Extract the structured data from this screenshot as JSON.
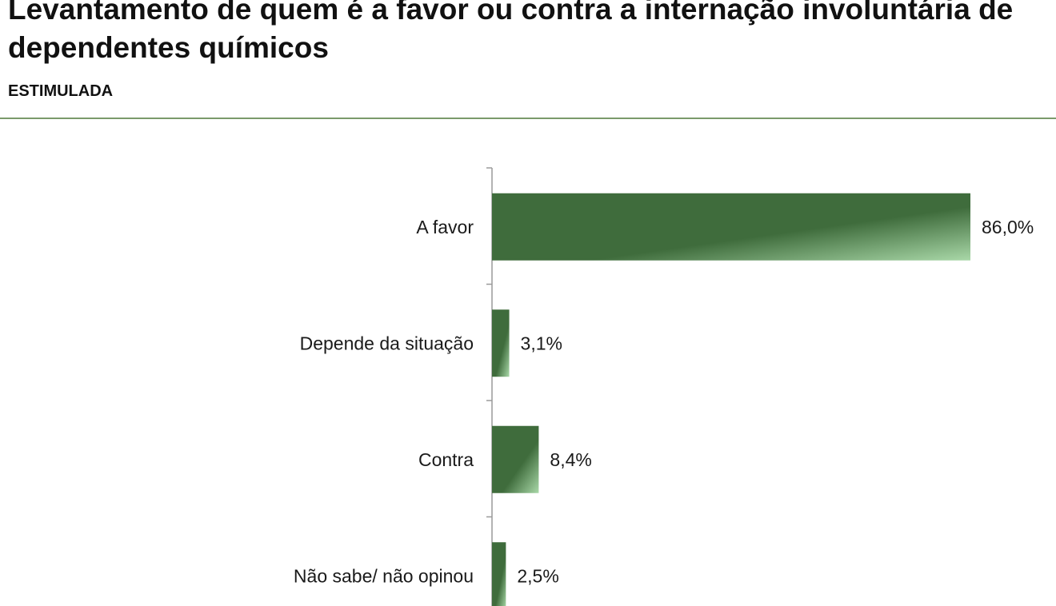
{
  "header": {
    "title": "Levantamento de quem é a favor ou contra a internação involuntária de dependentes químicos",
    "subtitle": "ESTIMULADA"
  },
  "colors": {
    "bar_dark": "#3f6c3c",
    "bar_light": "#a9d8a8",
    "rule": "#7a9a6a",
    "axis": "#9a9a9a"
  },
  "chart_data": {
    "type": "bar",
    "orientation": "horizontal",
    "title": "Levantamento de quem é a favor ou contra a internação involuntária de dependentes químicos",
    "subtitle": "ESTIMULADA",
    "categories": [
      "A favor",
      "Depende da situação",
      "Contra",
      "Não sabe/ não opinou"
    ],
    "values": [
      86.0,
      3.1,
      8.4,
      2.5
    ],
    "value_labels": [
      "86,0%",
      "3,1%",
      "8,4%",
      "2,5%"
    ],
    "unit": "%",
    "xlim": [
      0,
      100
    ],
    "grid": false,
    "legend": "none"
  }
}
